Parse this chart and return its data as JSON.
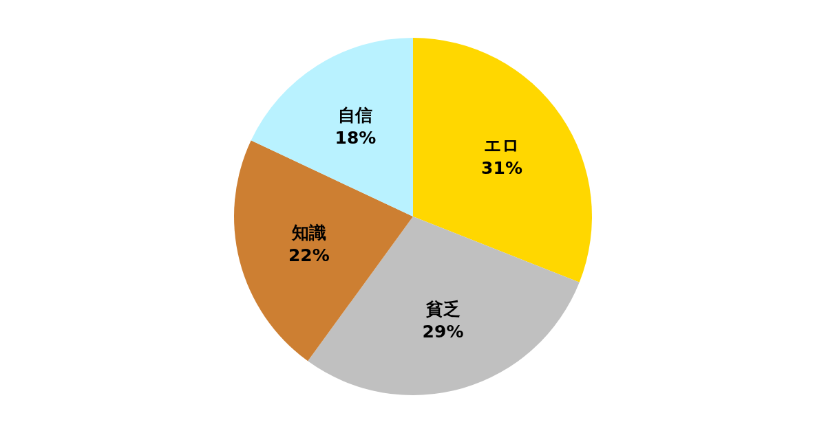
{
  "chart_data": {
    "type": "pie",
    "categories": [
      "エロ",
      "貧乏",
      "知識",
      "自信"
    ],
    "values": [
      31,
      29,
      22,
      18
    ],
    "colors": [
      "#ffd700",
      "#c0c0c0",
      "#cd7f32",
      "#b9f2ff"
    ],
    "value_labels": [
      "31%",
      "29%",
      "22%",
      "18%"
    ]
  }
}
